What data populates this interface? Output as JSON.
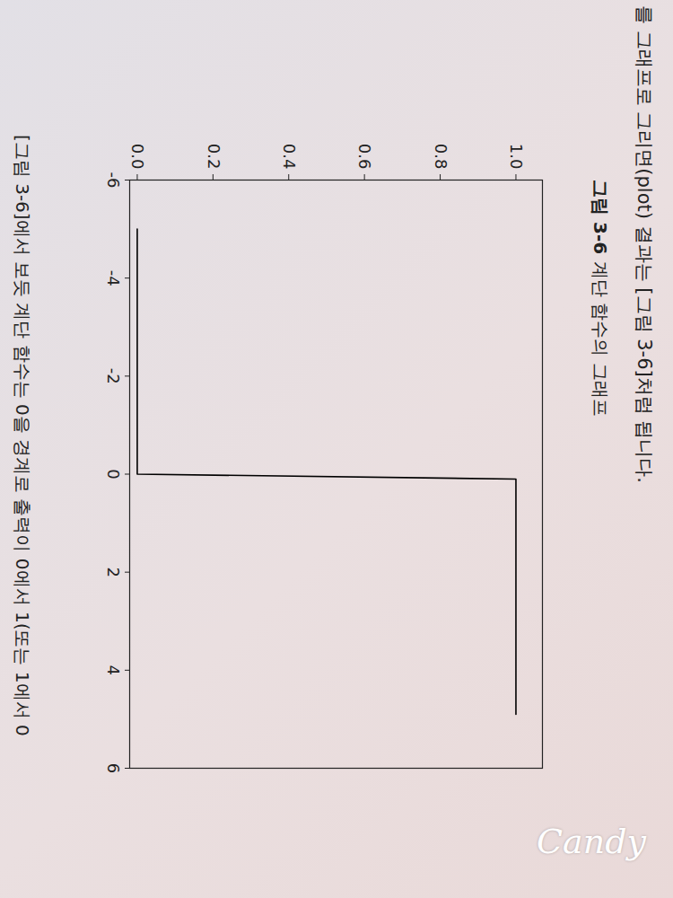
{
  "chart_data": {
    "type": "line",
    "title": "그림 3-6 계단 함수의 그래프",
    "annotations": [
      "를 그래프로 그리면(plot) 결과는 [그림 3-6]처럼 됩니다.",
      "[그림 3-6]에서 보듯 계단 함수는 0을 경계로 출력이 0에서 1(또는 1에서 0",
      "Candy"
    ],
    "x": [
      -5,
      0,
      0.1,
      4.9
    ],
    "values": [
      0,
      0,
      1,
      1
    ],
    "color": "#000000",
    "xlim": [
      -6,
      6
    ],
    "xticks": [
      -6,
      -4,
      -2,
      0,
      2,
      4,
      6
    ],
    "ylim": [
      -0.02,
      1.07
    ],
    "yticks": [
      {
        "value": 0,
        "label": "0.0"
      },
      {
        "value": 0.2,
        "label": "0.2"
      },
      {
        "value": 0.4,
        "label": "0.4"
      },
      {
        "value": 0.6,
        "label": "0.6"
      },
      {
        "value": 0.8,
        "label": "0.8"
      },
      {
        "value": 1,
        "label": "1.0"
      }
    ],
    "grid": false
  }
}
